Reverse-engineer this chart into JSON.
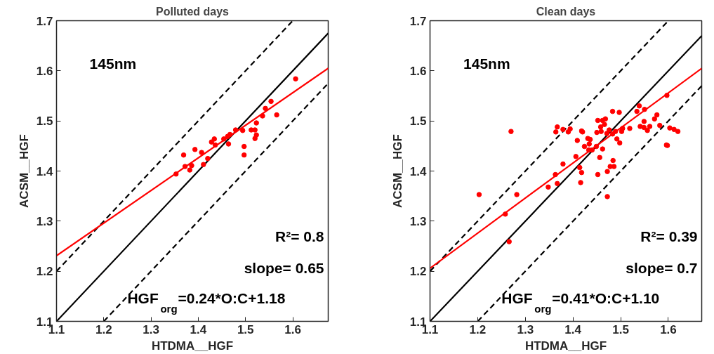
{
  "chart_data": [
    {
      "type": "scatter",
      "title": "Polluted days",
      "xlabel": "HTDMA__HGF",
      "ylabel": "ACSM__HGF",
      "xlim": [
        1.1,
        1.675
      ],
      "ylim": [
        1.1,
        1.7
      ],
      "xticks": [
        1.1,
        1.2,
        1.3,
        1.4,
        1.5,
        1.6
      ],
      "yticks": [
        1.1,
        1.2,
        1.3,
        1.4,
        1.5,
        1.6,
        1.7
      ],
      "grid": false,
      "annotations": [
        "145nm",
        "R²= 0.8",
        "slope= 0.65",
        "HGF$_{org}$=0.24*O:C+1.18"
      ],
      "series": [
        {
          "type": "line",
          "color": "#000000",
          "line_style": "solid",
          "x": [
            1.1,
            1.675
          ],
          "values": [
            1.1,
            1.675
          ]
        },
        {
          "type": "line",
          "color": "#000000",
          "line_style": "dashed",
          "x": [
            1.1,
            1.6
          ],
          "values": [
            1.2,
            1.7
          ]
        },
        {
          "type": "line",
          "color": "#000000",
          "line_style": "dashed",
          "x": [
            1.2,
            1.675
          ],
          "values": [
            1.1,
            1.575
          ]
        },
        {
          "type": "line",
          "color": "#ff0000",
          "line_style": "solid",
          "x": [
            1.1,
            1.675
          ],
          "values": [
            1.231,
            1.605
          ]
        },
        {
          "color": "#ff0000",
          "marker": "circle",
          "x": [
            1.353,
            1.369,
            1.372,
            1.382,
            1.386,
            1.393,
            1.407,
            1.411,
            1.42,
            1.428,
            1.434,
            1.436,
            1.454,
            1.462,
            1.464,
            1.467,
            1.479,
            1.494,
            1.497,
            1.497,
            1.512,
            1.52,
            1.523,
            1.523,
            1.52,
            1.536,
            1.542,
            1.554,
            1.566,
            1.606
          ],
          "values": [
            1.394,
            1.432,
            1.409,
            1.402,
            1.411,
            1.443,
            1.437,
            1.413,
            1.425,
            1.458,
            1.464,
            1.452,
            1.464,
            1.469,
            1.454,
            1.473,
            1.482,
            1.481,
            1.449,
            1.432,
            1.482,
            1.482,
            1.496,
            1.472,
            1.465,
            1.51,
            1.525,
            1.539,
            1.512,
            1.584
          ]
        }
      ]
    },
    {
      "type": "scatter",
      "title": "Clean days",
      "xlabel": "HTDMA__HGF",
      "ylabel": "ACSM__HGF",
      "xlim": [
        1.1,
        1.67
      ],
      "ylim": [
        1.1,
        1.7
      ],
      "xticks": [
        1.1,
        1.2,
        1.3,
        1.4,
        1.5,
        1.6
      ],
      "yticks": [
        1.1,
        1.2,
        1.3,
        1.4,
        1.5,
        1.6,
        1.7
      ],
      "grid": false,
      "annotations": [
        "145nm",
        "R²= 0.39",
        "slope= 0.7",
        "HGF$_{org}$=0.41*O:C+1.10"
      ],
      "series": [
        {
          "type": "line",
          "color": "#000000",
          "line_style": "solid",
          "x": [
            1.1,
            1.67
          ],
          "values": [
            1.1,
            1.67
          ]
        },
        {
          "type": "line",
          "color": "#000000",
          "line_style": "dashed",
          "x": [
            1.1,
            1.6
          ],
          "values": [
            1.2,
            1.7
          ]
        },
        {
          "type": "line",
          "color": "#000000",
          "line_style": "dashed",
          "x": [
            1.2,
            1.67
          ],
          "values": [
            1.1,
            1.57
          ]
        },
        {
          "type": "line",
          "color": "#ff0000",
          "line_style": "solid",
          "x": [
            1.1,
            1.67
          ],
          "values": [
            1.206,
            1.605
          ]
        },
        {
          "color": "#ff0000",
          "marker": "circle",
          "x": [
            1.203,
            1.258,
            1.27,
            1.266,
            1.282,
            1.348,
            1.363,
            1.367,
            1.364,
            1.367,
            1.379,
            1.379,
            1.39,
            1.394,
            1.406,
            1.409,
            1.414,
            1.418,
            1.42,
            1.418,
            1.416,
            1.424,
            1.431,
            1.434,
            1.436,
            1.433,
            1.44,
            1.449,
            1.45,
            1.452,
            1.452,
            1.456,
            1.458,
            1.459,
            1.462,
            1.462,
            1.466,
            1.468,
            1.471,
            1.472,
            1.472,
            1.476,
            1.478,
            1.483,
            1.483,
            1.484,
            1.486,
            1.489,
            1.492,
            1.497,
            1.498,
            1.502,
            1.504,
            1.519,
            1.534,
            1.539,
            1.541,
            1.549,
            1.55,
            1.549,
            1.556,
            1.561,
            1.571,
            1.576,
            1.582,
            1.597,
            1.598,
            1.603,
            1.596,
            1.612,
            1.62
          ],
          "values": [
            1.353,
            1.314,
            1.479,
            1.259,
            1.353,
            1.368,
            1.393,
            1.375,
            1.478,
            1.488,
            1.414,
            1.483,
            1.478,
            1.484,
            1.429,
            1.461,
            1.407,
            1.48,
            1.478,
            1.397,
            1.377,
            1.449,
            1.465,
            1.454,
            1.463,
            1.442,
            1.442,
            1.449,
            1.477,
            1.501,
            1.393,
            1.427,
            1.488,
            1.479,
            1.501,
            1.444,
            1.493,
            1.504,
            1.475,
            1.399,
            1.349,
            1.482,
            1.409,
            1.519,
            1.474,
            1.421,
            1.409,
            1.479,
            1.464,
            1.517,
            1.456,
            1.479,
            1.485,
            1.485,
            1.519,
            1.53,
            1.489,
            1.499,
            1.523,
            1.487,
            1.481,
            1.489,
            1.504,
            1.512,
            1.491,
            1.551,
            1.451,
            1.486,
            1.452,
            1.483,
            1.479
          ]
        }
      ]
    }
  ]
}
